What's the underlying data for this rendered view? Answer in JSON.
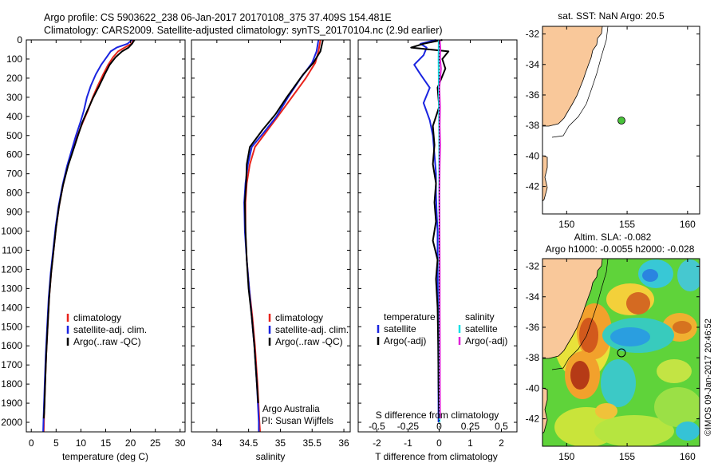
{
  "header": {
    "line1": "Argo profile: CS 5903622_238 06-Jan-2017 20170108_375 37.409S 154.481E",
    "line2": "Climatology: CARS2009. Satellite-adjusted climatology: synTS_20170104.nc (2.9d earlier)"
  },
  "colors": {
    "climatology": "#e8241c",
    "satellite": "#1a24e0",
    "argo": "#000000",
    "sal_satellite": "#19e0e6",
    "sal_argo": "#e020d8",
    "land": "#f9c89a",
    "float_marker": "#49c33a"
  },
  "chart_data": [
    {
      "type": "line",
      "id": "temperature",
      "xlabel": "temperature (deg C)",
      "ylabel": "",
      "xlim": [
        -1,
        31
      ],
      "ylim": [
        0,
        2050
      ],
      "xticks": [
        0,
        5,
        10,
        15,
        20,
        25,
        30
      ],
      "yticks": [
        0,
        100,
        200,
        300,
        400,
        500,
        600,
        700,
        800,
        900,
        1000,
        1100,
        1200,
        1300,
        1400,
        1500,
        1600,
        1700,
        1800,
        1900,
        2000
      ],
      "legend": [
        "climatology",
        "satellite-adj. clim.",
        "Argo(..raw -QC)"
      ],
      "series": [
        {
          "name": "climatology",
          "color": "#e8241c",
          "points": [
            [
              20.6,
              0
            ],
            [
              20.2,
              20
            ],
            [
              18.8,
              40
            ],
            [
              17.5,
              60
            ],
            [
              16.5,
              90
            ],
            [
              15.5,
              130
            ],
            [
              14.5,
              180
            ],
            [
              13.4,
              240
            ],
            [
              12.4,
              300
            ],
            [
              11.4,
              370
            ],
            [
              10.4,
              430
            ],
            [
              9.3,
              500
            ],
            [
              8.3,
              580
            ],
            [
              7.3,
              660
            ],
            [
              6.4,
              760
            ],
            [
              5.6,
              870
            ],
            [
              5.0,
              980
            ],
            [
              4.5,
              1100
            ],
            [
              4.0,
              1220
            ],
            [
              3.6,
              1350
            ],
            [
              3.3,
              1500
            ],
            [
              3.0,
              1650
            ],
            [
              2.8,
              1800
            ],
            [
              2.6,
              1950
            ],
            [
              2.5,
              2050
            ]
          ]
        },
        {
          "name": "satellite-adj. clim.",
          "color": "#1a24e0",
          "points": [
            [
              20.3,
              0
            ],
            [
              19.4,
              20
            ],
            [
              17.2,
              40
            ],
            [
              16.0,
              60
            ],
            [
              15.2,
              90
            ],
            [
              14.1,
              130
            ],
            [
              13.0,
              180
            ],
            [
              12.0,
              240
            ],
            [
              11.2,
              300
            ],
            [
              10.6,
              370
            ],
            [
              9.9,
              430
            ],
            [
              9.0,
              500
            ],
            [
              8.1,
              580
            ],
            [
              7.2,
              660
            ],
            [
              6.3,
              760
            ],
            [
              5.5,
              870
            ],
            [
              4.9,
              980
            ],
            [
              4.4,
              1100
            ],
            [
              3.9,
              1220
            ],
            [
              3.5,
              1350
            ],
            [
              3.2,
              1500
            ],
            [
              2.9,
              1650
            ],
            [
              2.7,
              1800
            ],
            [
              2.5,
              1950
            ],
            [
              2.4,
              2050
            ]
          ]
        },
        {
          "name": "Argo(..raw -QC)",
          "color": "#000000",
          "points": [
            [
              20.8,
              0
            ],
            [
              20.3,
              20
            ],
            [
              19.6,
              40
            ],
            [
              18.3,
              60
            ],
            [
              17.0,
              90
            ],
            [
              15.8,
              130
            ],
            [
              14.8,
              180
            ],
            [
              13.7,
              240
            ],
            [
              12.5,
              300
            ],
            [
              11.3,
              370
            ],
            [
              10.3,
              430
            ],
            [
              9.4,
              500
            ],
            [
              8.4,
              580
            ],
            [
              7.4,
              660
            ],
            [
              6.4,
              760
            ],
            [
              5.6,
              870
            ],
            [
              5.0,
              980
            ],
            [
              4.5,
              1100
            ],
            [
              4.0,
              1220
            ],
            [
              3.6,
              1350
            ],
            [
              3.3,
              1500
            ],
            [
              3.0,
              1650
            ],
            [
              2.8,
              1800
            ],
            [
              2.6,
              1950
            ],
            [
              2.5,
              1980
            ]
          ]
        }
      ]
    },
    {
      "type": "line",
      "id": "salinity",
      "xlabel": "salinity",
      "xlim": [
        33.6,
        36.1
      ],
      "ylim": [
        0,
        2050
      ],
      "xticks": [
        34,
        34.5,
        35,
        35.5,
        36
      ],
      "xtick_labels": [
        "34",
        "34.5",
        "35",
        "35.5",
        "36"
      ],
      "legend": [
        "climatology",
        "satellite-adj. clim.",
        "Argo(..raw -QC)"
      ],
      "annotation": [
        "Argo Australia",
        "PI: Susan Wijffels"
      ],
      "series": [
        {
          "name": "climatology",
          "color": "#e8241c",
          "points": [
            [
              35.63,
              0
            ],
            [
              35.6,
              60
            ],
            [
              35.55,
              120
            ],
            [
              35.4,
              200
            ],
            [
              35.18,
              300
            ],
            [
              34.96,
              400
            ],
            [
              34.78,
              480
            ],
            [
              34.6,
              560
            ],
            [
              34.52,
              650
            ],
            [
              34.47,
              750
            ],
            [
              34.45,
              850
            ],
            [
              34.45,
              1000
            ],
            [
              34.47,
              1150
            ],
            [
              34.51,
              1300
            ],
            [
              34.56,
              1450
            ],
            [
              34.6,
              1600
            ],
            [
              34.64,
              1800
            ],
            [
              34.67,
              2000
            ],
            [
              34.68,
              2050
            ]
          ]
        },
        {
          "name": "satellite-adj. clim.",
          "color": "#1a24e0",
          "points": [
            [
              35.6,
              0
            ],
            [
              35.57,
              60
            ],
            [
              35.5,
              120
            ],
            [
              35.32,
              200
            ],
            [
              35.12,
              300
            ],
            [
              34.94,
              400
            ],
            [
              34.75,
              480
            ],
            [
              34.55,
              560
            ],
            [
              34.49,
              650
            ],
            [
              34.45,
              750
            ],
            [
              34.43,
              850
            ],
            [
              34.44,
              1000
            ],
            [
              34.47,
              1150
            ],
            [
              34.51,
              1300
            ],
            [
              34.55,
              1450
            ],
            [
              34.59,
              1600
            ],
            [
              34.63,
              1800
            ],
            [
              34.66,
              2000
            ],
            [
              34.66,
              2050
            ]
          ]
        },
        {
          "name": "Argo(..raw -QC)",
          "color": "#000000",
          "points": [
            [
              35.67,
              0
            ],
            [
              35.63,
              60
            ],
            [
              35.52,
              120
            ],
            [
              35.36,
              180
            ],
            [
              35.1,
              300
            ],
            [
              34.92,
              390
            ],
            [
              34.72,
              470
            ],
            [
              34.52,
              560
            ],
            [
              34.47,
              650
            ],
            [
              34.46,
              750
            ],
            [
              34.44,
              850
            ],
            [
              34.45,
              1000
            ],
            [
              34.47,
              1150
            ],
            [
              34.5,
              1300
            ],
            [
              34.55,
              1450
            ],
            [
              34.59,
              1600
            ],
            [
              34.63,
              1800
            ],
            [
              34.65,
              1900
            ]
          ]
        }
      ]
    },
    {
      "type": "line",
      "id": "difference",
      "xlabel": "T difference from climatology",
      "top_label": "S difference from climatology",
      "xlim": [
        -2.6,
        2.5
      ],
      "ylim": [
        0,
        2050
      ],
      "xticks": [
        -2,
        -1,
        0,
        1,
        2
      ],
      "top_xticks": [
        -0.5,
        -0.25,
        0,
        0.25,
        0.5
      ],
      "top_xtick_labels": [
        "-0.5",
        "-0.25",
        "0",
        "0.25",
        "0.5"
      ],
      "legend_titles": [
        "temperature",
        "salinity"
      ],
      "legend": [
        "satellite",
        "Argo(-adj)",
        "satellite",
        "Argo(-adj)"
      ],
      "series": [
        {
          "name": "temperature satellite",
          "color": "#1a24e0",
          "points": [
            [
              -0.1,
              0
            ],
            [
              -0.6,
              20
            ],
            [
              -0.4,
              40
            ],
            [
              -0.5,
              80
            ],
            [
              -0.8,
              130
            ],
            [
              -0.6,
              180
            ],
            [
              -0.3,
              250
            ],
            [
              -0.5,
              330
            ],
            [
              -0.3,
              420
            ],
            [
              -0.2,
              500
            ],
            [
              -0.15,
              600
            ],
            [
              -0.1,
              700
            ],
            [
              -0.1,
              800
            ],
            [
              -0.08,
              900
            ],
            [
              -0.05,
              1000
            ],
            [
              -0.05,
              1200
            ],
            [
              -0.03,
              1500
            ],
            [
              -0.02,
              2000
            ]
          ]
        },
        {
          "name": "temperature Argo(-adj)",
          "color": "#000000",
          "points": [
            [
              0.1,
              0
            ],
            [
              -0.5,
              20
            ],
            [
              -0.9,
              40
            ],
            [
              0.3,
              60
            ],
            [
              0.1,
              100
            ],
            [
              0.2,
              150
            ],
            [
              -0.05,
              250
            ],
            [
              0,
              350
            ],
            [
              -0.2,
              450
            ],
            [
              -0.15,
              550
            ],
            [
              -0.2,
              650
            ],
            [
              -0.1,
              750
            ],
            [
              -0.15,
              850
            ],
            [
              -0.1,
              950
            ],
            [
              -0.2,
              1050
            ],
            [
              -0.05,
              1150
            ],
            [
              -0.1,
              1250
            ],
            [
              -0.05,
              1400
            ],
            [
              -0.03,
              1600
            ],
            [
              -0.02,
              1800
            ],
            [
              0,
              1980
            ]
          ]
        },
        {
          "name": "salinity satellite",
          "color": "#19e0e6",
          "points": [
            [
              -0.015,
              0
            ],
            [
              -0.02,
              100
            ],
            [
              -0.01,
              300
            ],
            [
              0,
              500
            ],
            [
              0.005,
              800
            ],
            [
              0.008,
              1100
            ],
            [
              0.01,
              1400
            ],
            [
              0.012,
              1700
            ],
            [
              0.015,
              2000
            ]
          ]
        },
        {
          "name": "salinity Argo(-adj)",
          "color": "#e020d8",
          "points": [
            [
              0.02,
              0
            ],
            [
              0.04,
              40
            ],
            [
              0.03,
              100
            ],
            [
              0.06,
              150
            ],
            [
              0.01,
              250
            ],
            [
              0.03,
              350
            ],
            [
              0.02,
              450
            ],
            [
              0.035,
              550
            ],
            [
              0.02,
              650
            ],
            [
              0.01,
              800
            ],
            [
              0.015,
              1000
            ],
            [
              0.02,
              1200
            ],
            [
              0.02,
              1400
            ],
            [
              0.025,
              1600
            ],
            [
              0.025,
              1800
            ],
            [
              0.03,
              1980
            ]
          ]
        }
      ]
    },
    {
      "type": "map",
      "id": "sst_map",
      "title": "sat. SST: NaN Argo: 20.5",
      "xlim": [
        148,
        161
      ],
      "ylim": [
        -43.8,
        -31.5
      ],
      "xticks": [
        150,
        155,
        160
      ],
      "yticks": [
        -32,
        -34,
        -36,
        -38,
        -40,
        -42
      ],
      "float_lon": 154.481,
      "float_lat": -37.409
    },
    {
      "type": "heatmap",
      "id": "sla_map",
      "title_line1": "Altim. SLA: -0.082",
      "title_line2": "Argo h1000: -0.0055 h2000: -0.028",
      "xlim": [
        148,
        161
      ],
      "ylim": [
        -43.8,
        -31.5
      ],
      "xticks": [
        150,
        155,
        160
      ],
      "yticks": [
        -32,
        -34,
        -36,
        -38,
        -40,
        -42
      ],
      "float_lon": 154.481,
      "float_lat": -37.409,
      "side_label": "©IMOS 09-Jan-2017 20:46:52"
    }
  ]
}
